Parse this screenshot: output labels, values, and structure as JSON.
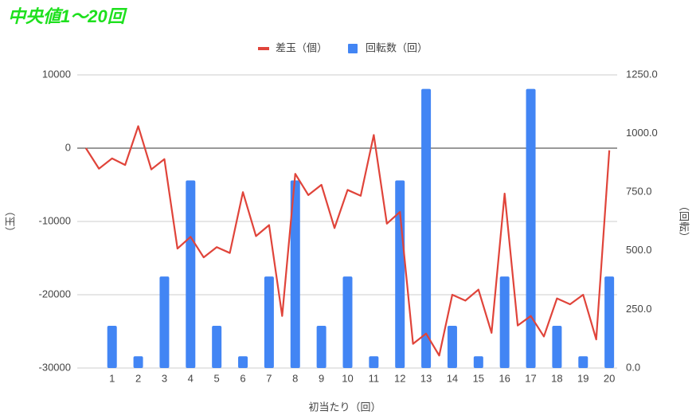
{
  "chart_data": {
    "type": "combo",
    "title": "中央値1〜20回",
    "x_label": "初当たり（回）",
    "y_label": "（玉）",
    "y2_label": "（回転）",
    "xlim": [
      -0.33,
      20.3
    ],
    "xticks": [
      1,
      2,
      3,
      4,
      5,
      6,
      7,
      8,
      9,
      10,
      11,
      12,
      13,
      14,
      15,
      16,
      17,
      18,
      19,
      20
    ],
    "ylim": [
      -30000,
      10000
    ],
    "yticks": [
      10000,
      0,
      -10000,
      -20000,
      -30000
    ],
    "y2lim": [
      0,
      1250
    ],
    "y2ticks": [
      {
        "value": 1250,
        "label": "1250.0"
      },
      {
        "value": 1000,
        "label": "1000.0"
      },
      {
        "value": 750,
        "label": "750.0"
      },
      {
        "value": 500,
        "label": "500.0"
      },
      {
        "value": 250,
        "label": "250.0"
      },
      {
        "value": 0,
        "label": "0.0"
      }
    ],
    "grid": true,
    "legend": "top",
    "series": [
      {
        "name": "差玉（個）",
        "type": "line",
        "color": "#e0443a",
        "x": [
          0,
          0.5,
          1,
          1.5,
          2,
          2.5,
          3,
          3.5,
          4,
          4.5,
          5,
          5.5,
          6,
          6.5,
          7,
          7.5,
          8,
          8.5,
          9,
          9.5,
          10,
          10.5,
          11,
          11.5,
          12,
          12.5,
          13,
          13.5,
          14,
          14.5,
          15,
          15.5,
          16,
          16.5,
          17,
          17.5,
          18,
          18.5,
          19,
          19.5,
          20
        ],
        "values": [
          0,
          -2800,
          -1400,
          -2300,
          3000,
          -2900,
          -1500,
          -13700,
          -12100,
          -14900,
          -13500,
          -14300,
          -6000,
          -12000,
          -10500,
          -22900,
          -3500,
          -6400,
          -5000,
          -10900,
          -5700,
          -6500,
          1800,
          -10300,
          -8700,
          -26700,
          -25300,
          -28300,
          -20000,
          -20800,
          -19300,
          -25200,
          -6200,
          -24200,
          -22900,
          -25700,
          -20500,
          -21300,
          -20000,
          -26100,
          -300
        ]
      },
      {
        "name": "回転数（回）",
        "type": "bar",
        "axis": "y2",
        "color": "#4285f4",
        "x": [
          1,
          2,
          3,
          4,
          5,
          6,
          7,
          8,
          9,
          10,
          11,
          12,
          13,
          14,
          15,
          16,
          17,
          18,
          19,
          20
        ],
        "values": [
          180,
          50,
          390,
          800,
          180,
          50,
          390,
          800,
          180,
          390,
          50,
          800,
          1190,
          180,
          50,
          390,
          1190,
          180,
          50,
          390
        ]
      }
    ]
  }
}
